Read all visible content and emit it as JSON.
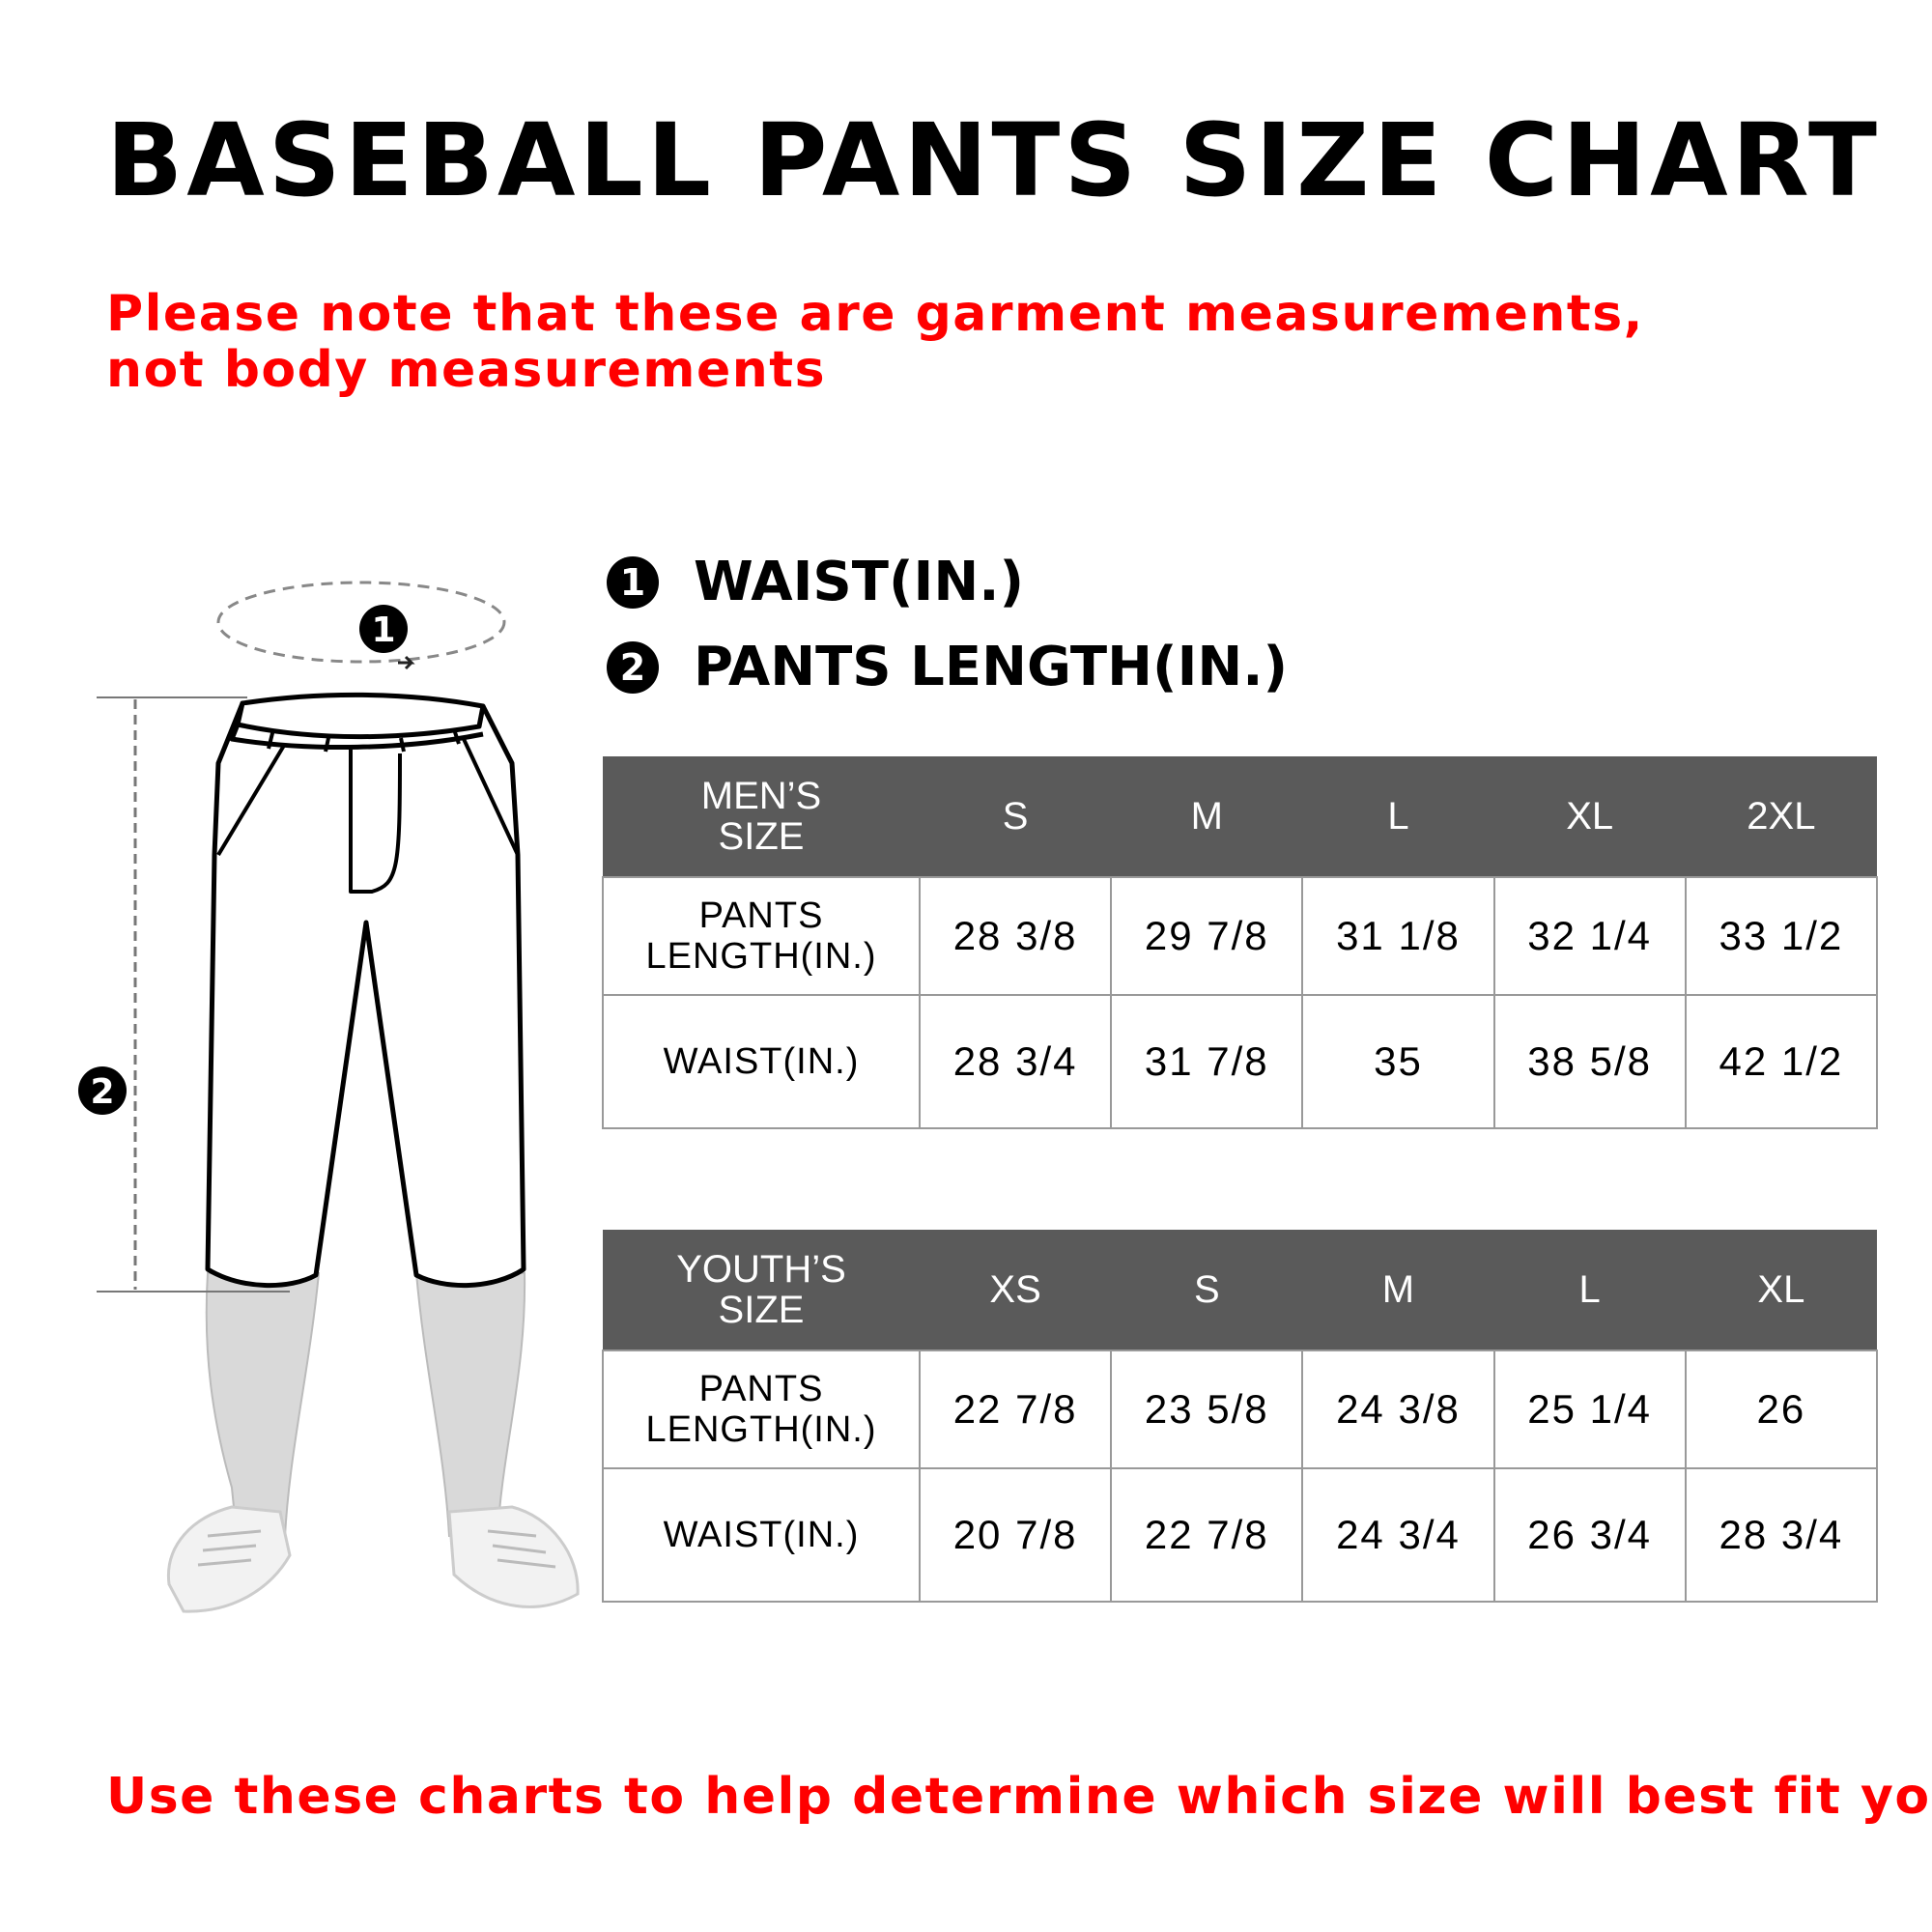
{
  "title": "BASEBALL PANTS SIZE CHART",
  "note": "Please note that these are garment measurements, not body measurements",
  "legend": [
    {
      "badge": "1",
      "label": "WAIST(IN.)"
    },
    {
      "badge": "2",
      "label": "PANTS LENGTH(IN.)"
    }
  ],
  "mens_table": {
    "header": [
      "MEN’S SIZE",
      "S",
      "M",
      "L",
      "XL",
      "2XL"
    ],
    "rows": [
      [
        "PANTS LENGTH(IN.)",
        "28 3/8",
        "29 7/8",
        "31 1/8",
        "32 1/4",
        "33 1/2"
      ],
      [
        "WAIST(IN.)",
        "28 3/4",
        "31 7/8",
        "35",
        "38 5/8",
        "42 1/2"
      ]
    ]
  },
  "youth_table": {
    "header": [
      "YOUTH’S SIZE",
      "XS",
      "S",
      "M",
      "L",
      "XL"
    ],
    "rows": [
      [
        "PANTS LENGTH(IN.)",
        "22 7/8",
        "23 5/8",
        "24 3/8",
        "25 1/4",
        "26"
      ],
      [
        "WAIST(IN.)",
        "20 7/8",
        "22 7/8",
        "24 3/4",
        "26 3/4",
        "28 3/4"
      ]
    ]
  },
  "diagram": {
    "badge_waist": "1",
    "badge_length": "2"
  },
  "footer": "Use these charts to help determine which size will best fit you",
  "colors": {
    "accent_red": "#ff0000",
    "header_gray": "#5a5a5a",
    "sock_gray": "#d9d9d9"
  }
}
